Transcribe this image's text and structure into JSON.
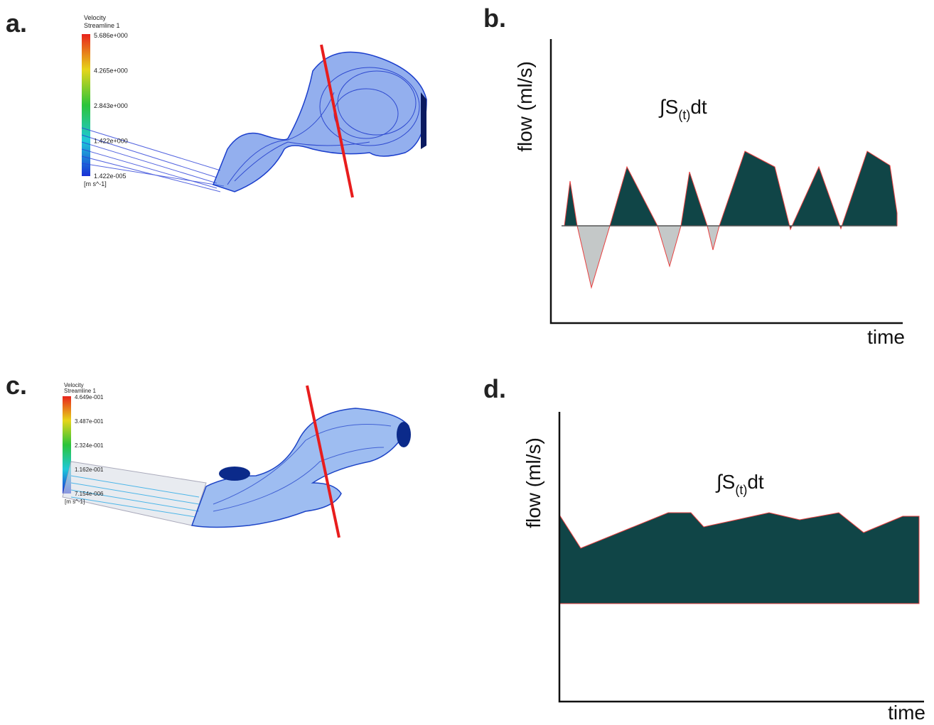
{
  "panels": [
    {
      "letter": "a.",
      "legend": {
        "title": "Velocity",
        "subtitle": "Streamline 1",
        "ticks": [
          "5.686e+000",
          "4.265e+000",
          "2.843e+000",
          "1.422e+000",
          "1.422e-005"
        ],
        "unit": "[m s^-1]"
      }
    },
    {
      "letter": "b.",
      "ylabel": "flow (ml/s)",
      "xlabel": "time",
      "annotation": {
        "main": "∫S",
        "subscript": "(t)",
        "suffix": "dt"
      }
    },
    {
      "letter": "c.",
      "legend": {
        "title": "Velocity",
        "subtitle": "Streamline 1",
        "ticks": [
          "4.649e-001",
          "3.487e-001",
          "2.324e-001",
          "1.162e-001",
          "7.154e-006"
        ],
        "unit": "[m s^-1]"
      }
    },
    {
      "letter": "d.",
      "ylabel": "flow (ml/s)",
      "xlabel": "time",
      "annotation": {
        "main": "∫S",
        "subscript": "(t)",
        "suffix": "dt"
      }
    }
  ]
}
